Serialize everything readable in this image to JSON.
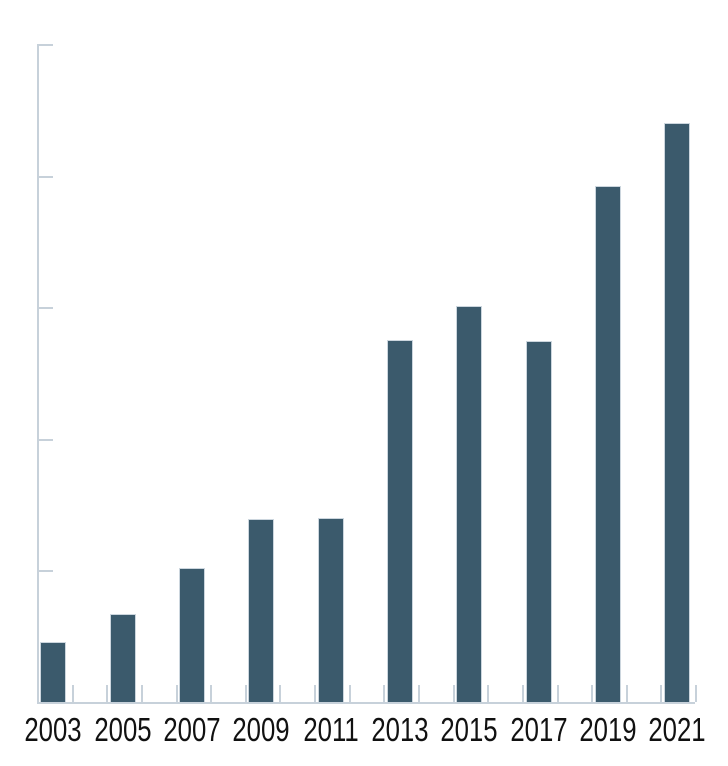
{
  "chart_data": {
    "type": "bar",
    "title": "",
    "xlabel": "",
    "ylabel": "",
    "categories": [
      "2003",
      "2005",
      "2007",
      "2009",
      "2011",
      "2013",
      "2015",
      "2017",
      "2019",
      "2021"
    ],
    "values": [
      0.46,
      0.67,
      1.02,
      1.39,
      1.4,
      2.75,
      3.01,
      2.74,
      3.92,
      4.4
    ],
    "value_units": "unlabeled y-axis gridline units (no numeric tick labels shown)",
    "ylim": [
      0,
      5
    ],
    "y_tick_interval": 1,
    "y_tick_count": 5,
    "grid": "off",
    "legend_position": "none",
    "tick_style": "inward",
    "colors": {
      "bar_fill": "#3b5a6c",
      "bar_stroke": "#ccd6de",
      "axis": "#c7d1da",
      "label_text": "#111111",
      "background": "#ffffff"
    }
  }
}
